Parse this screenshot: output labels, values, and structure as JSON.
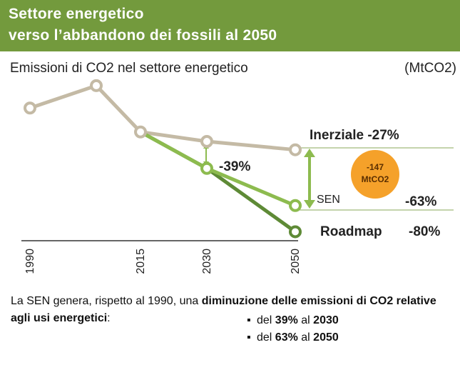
{
  "header": {
    "title": "Settore energetico",
    "subtitle": "verso l’abbandono dei fossili al 2050"
  },
  "chart_data": {
    "type": "line",
    "title": "Emissioni di CO2 nel settore energetico",
    "unit": "(MtCO2)",
    "x": [
      1990,
      2005,
      2015,
      2030,
      2050
    ],
    "xlim": [
      1990,
      2050
    ],
    "xticks": [
      1990,
      2015,
      2030,
      2050
    ],
    "ylim": [
      0,
      480
    ],
    "series": [
      {
        "name": "Inerziale",
        "color": "#c4baa5",
        "values": [
          408,
          467,
          345,
          320,
          298
        ]
      },
      {
        "name": "SEN",
        "color": "#8dbb4f",
        "values": [
          null,
          null,
          345,
          249,
          151
        ]
      },
      {
        "name": "Roadmap",
        "color": "#5e8a36",
        "values": [
          null,
          null,
          345,
          249,
          82
        ]
      }
    ],
    "annotations": [
      "Inerziale -27%",
      "-39%",
      "SEN",
      "-63%",
      "Roadmap",
      "-80%",
      "-147",
      "MtCO2"
    ]
  },
  "footer": {
    "intro": "La SEN genera, rispetto al 1990, una ",
    "intro_bold": "diminuzione delle emissioni di CO2 relative agli usi energetici",
    "colon": ":",
    "bullets": [
      [
        "del ",
        "39%",
        " al ",
        "2030"
      ],
      [
        "del ",
        "63%",
        " al ",
        "2050"
      ]
    ]
  }
}
